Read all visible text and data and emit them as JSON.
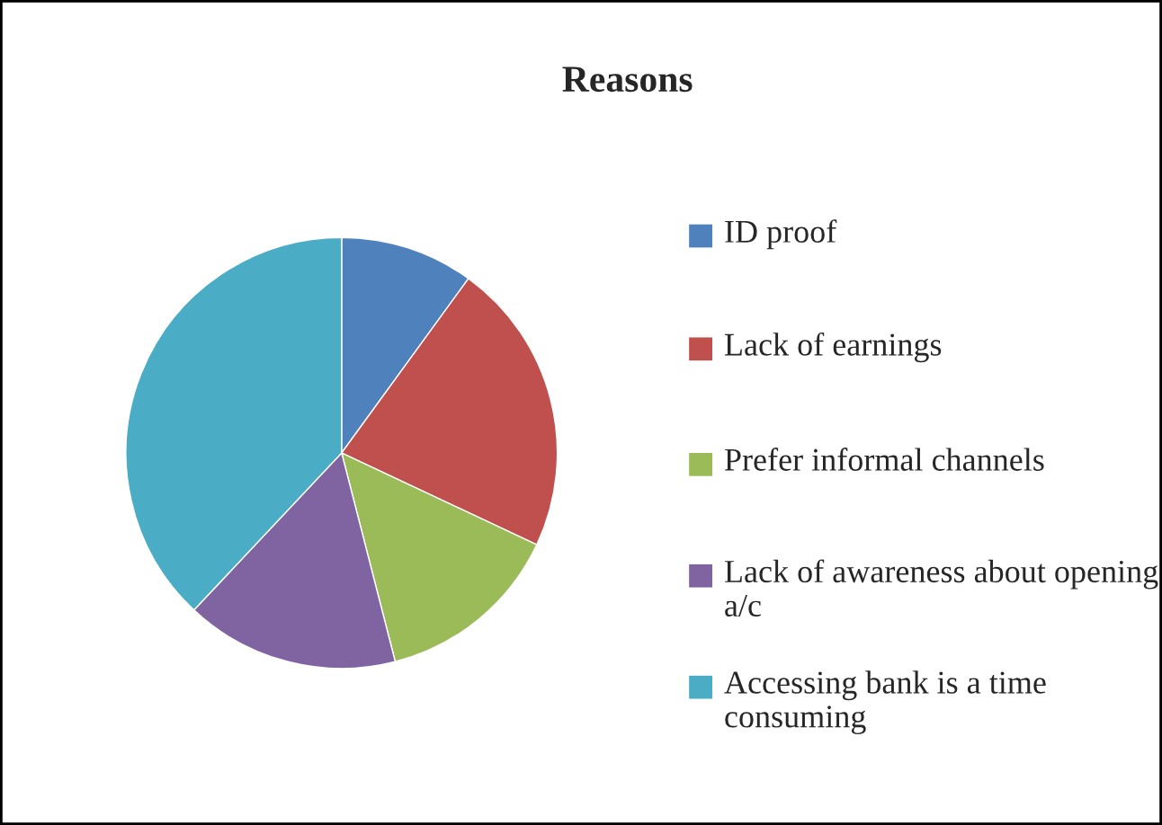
{
  "chart_data": {
    "type": "pie",
    "title": "Reasons",
    "categories": [
      "ID proof",
      "Lack of earnings",
      "Prefer informal channels",
      "Lack of awareness about opening a/c",
      "Accessing bank is a time consuming"
    ],
    "values": [
      10,
      22,
      14,
      16,
      38
    ],
    "colors": [
      "#4f81bd",
      "#c0504d",
      "#9bbb59",
      "#8064a2",
      "#4bacc6"
    ],
    "legend": "right"
  }
}
